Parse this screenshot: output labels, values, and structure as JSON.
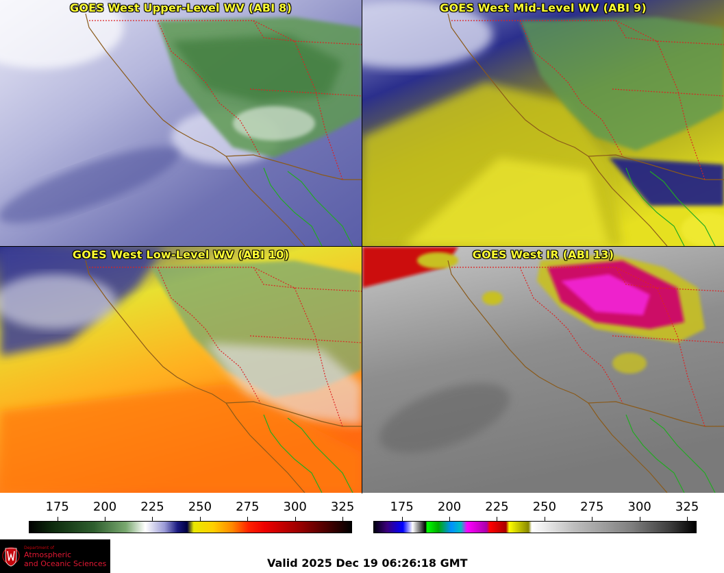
{
  "panels": [
    {
      "id": "upper",
      "title": "GOES West Upper-Level WV (ABI 8)"
    },
    {
      "id": "mid",
      "title": "GOES West Mid-Level WV (ABI 9)"
    },
    {
      "id": "low",
      "title": "GOES West Low-Level WV (ABI 10)"
    },
    {
      "id": "ir",
      "title": "GOES West IR (ABI 13)"
    }
  ],
  "scales": {
    "wv": {
      "ticks": [
        "175",
        "200",
        "225",
        "250",
        "275",
        "300",
        "325"
      ],
      "range": [
        160,
        330
      ]
    },
    "ir": {
      "ticks": [
        "175",
        "200",
        "225",
        "250",
        "275",
        "300",
        "325"
      ],
      "range": [
        160,
        330
      ]
    }
  },
  "logo": {
    "dept": "Department of",
    "line1": "Atmospheric",
    "line2": "and Oceanic Sciences"
  },
  "valid_time": "Valid 2025 Dec 19 06:26:18 GMT",
  "colors": {
    "title": "#ffff33",
    "coast": "#8a5a1a",
    "states": "#dd2222",
    "mexico": "#22aa22"
  }
}
